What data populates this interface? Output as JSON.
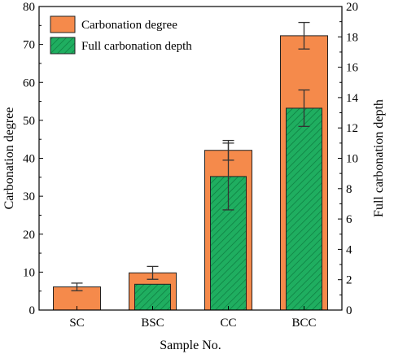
{
  "chart_data": {
    "type": "bar",
    "categories": [
      "SC",
      "BSC",
      "CC",
      "BCC"
    ],
    "xlabel": "Sample No.",
    "ylabel": "Carbonation degree",
    "y2label": "Full carbonation depth",
    "ylim": [
      0,
      80
    ],
    "y2lim": [
      0,
      20
    ],
    "yticks": [
      0,
      10,
      20,
      30,
      40,
      50,
      60,
      70,
      80
    ],
    "y2ticks": [
      0,
      2,
      4,
      6,
      8,
      10,
      12,
      14,
      16,
      18,
      20
    ],
    "legend_position": "top-left",
    "series": [
      {
        "name": "Carbonation degree",
        "axis": "left",
        "color": "#F58A4B",
        "values": [
          6.1,
          9.8,
          42.1,
          72.3
        ],
        "errors": [
          1.0,
          1.7,
          2.6,
          3.5
        ]
      },
      {
        "name": "Full carbonation depth",
        "axis": "right",
        "color": "#1FAE60",
        "hatch": true,
        "values": [
          0,
          1.7,
          8.8,
          13.3
        ],
        "errors": [
          0,
          0,
          2.2,
          1.2
        ]
      }
    ]
  }
}
